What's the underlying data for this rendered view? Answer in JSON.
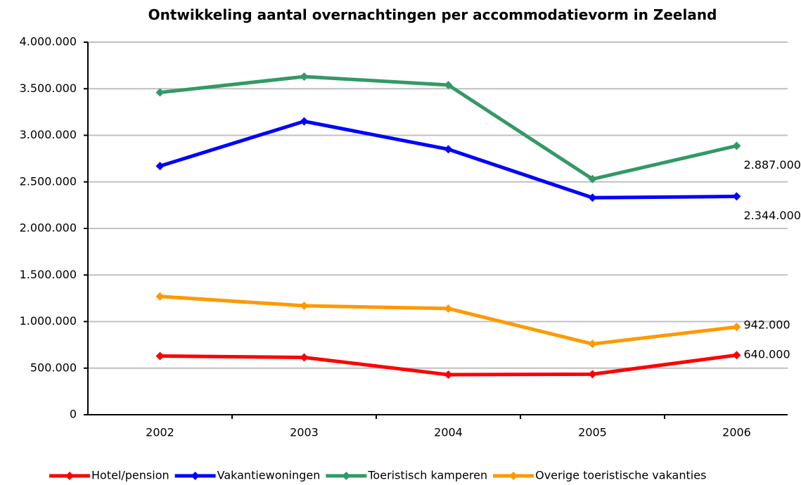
{
  "chart_data": {
    "type": "line",
    "title": "Ontwikkeling aantal overnachtingen per accommodatievorm in Zeeland",
    "categories": [
      "2002",
      "2003",
      "2004",
      "2005",
      "2006"
    ],
    "series": [
      {
        "name": "Hotel/pension",
        "color": "#ff0000",
        "values": [
          630000,
          615000,
          430000,
          435000,
          640000
        ],
        "value_labels": [
          null,
          null,
          null,
          null,
          "640.000"
        ]
      },
      {
        "name": "Vakantiewoningen",
        "color": "#0000ff",
        "values": [
          2670000,
          3150000,
          2850000,
          2330000,
          2344000
        ],
        "value_labels": [
          null,
          null,
          null,
          null,
          "2.344.000"
        ]
      },
      {
        "name": "Toeristisch kamperen",
        "color": "#339966",
        "values": [
          3460000,
          3630000,
          3540000,
          2530000,
          2887000
        ],
        "value_labels": [
          null,
          null,
          null,
          null,
          "2.887.000"
        ]
      },
      {
        "name": "Overige toeristische vakanties",
        "color": "#ff9900",
        "values": [
          1270000,
          1170000,
          1140000,
          760000,
          942000
        ],
        "value_labels": [
          null,
          null,
          null,
          null,
          "942.000"
        ]
      }
    ],
    "ylim": [
      0,
      4000000
    ],
    "yticks": [
      0,
      {
        "value": 500000,
        "label": "500.000"
      },
      {
        "value": 1000000,
        "label": "1.000.000"
      },
      {
        "value": 1500000,
        "label": "1.500.000"
      },
      {
        "value": 2000000,
        "label": "2.000.000"
      },
      {
        "value": 2500000,
        "label": "2.500.000"
      },
      {
        "value": 3000000,
        "label": "3.000.000"
      },
      {
        "value": 3500000,
        "label": "3.500.000"
      },
      {
        "value": 4000000,
        "label": "4.000.000"
      }
    ],
    "grid": true,
    "legend": "bottom"
  }
}
